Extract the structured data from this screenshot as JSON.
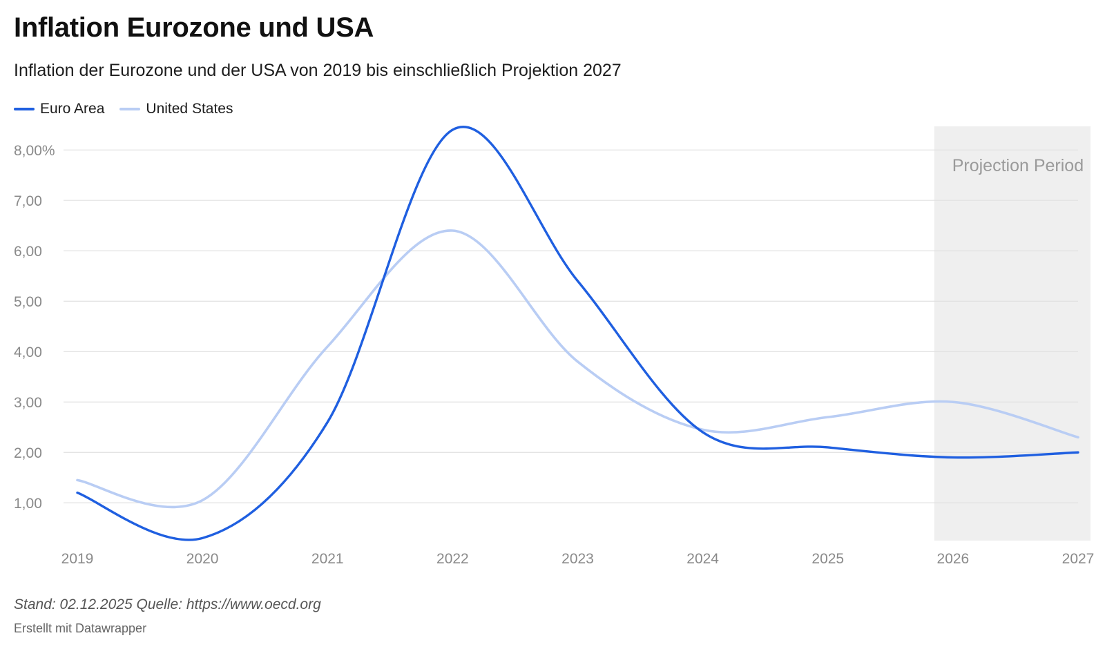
{
  "chart_data": {
    "type": "line",
    "title": "Inflation Eurozone und USA",
    "subtitle": "Inflation der Eurozone und der USA von 2019 bis einschließlich Projektion 2027",
    "x": [
      2019,
      2020,
      2021,
      2022,
      2023,
      2024,
      2025,
      2026,
      2027
    ],
    "x_labels": [
      "2019",
      "2020",
      "2021",
      "2022",
      "2023",
      "2024",
      "2025",
      "2026",
      "2027"
    ],
    "series": [
      {
        "name": "Euro Area",
        "color": "#1f5fe0",
        "values": [
          1.2,
          0.3,
          2.6,
          8.4,
          5.4,
          2.4,
          2.1,
          1.9,
          2.0
        ]
      },
      {
        "name": "United States",
        "color": "#b9cdf4",
        "values": [
          1.45,
          1.05,
          4.1,
          6.4,
          3.8,
          2.45,
          2.7,
          3.0,
          2.3
        ]
      }
    ],
    "y_ticks": [
      1,
      2,
      3,
      4,
      5,
      6,
      7,
      8
    ],
    "y_tick_labels": [
      "1,00",
      "2,00",
      "3,00",
      "4,00",
      "5,00",
      "6,00",
      "7,00",
      "8,00%"
    ],
    "ylim": [
      0.25,
      8.4
    ],
    "grid": true,
    "legend_position": "top-left",
    "shaded_region": {
      "from": 2025.85,
      "to": 2027.1,
      "label": "Projection Period",
      "color": "#efefef"
    }
  },
  "footer": {
    "source": "Stand: 02.12.2025 Quelle: https://www.oecd.org",
    "credit": "Erstellt mit Datawrapper"
  }
}
